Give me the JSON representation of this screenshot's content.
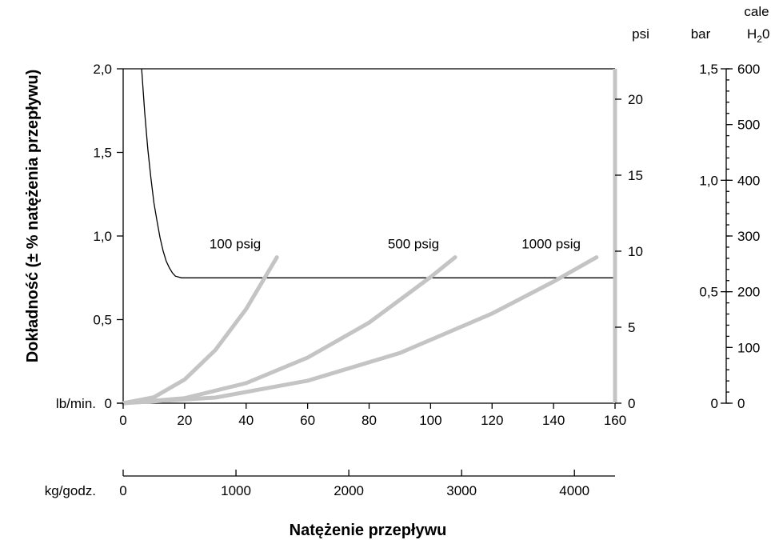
{
  "chart_data": {
    "type": "line",
    "title": "",
    "ylabel": "Dokładność (± % natężenia przepływu)",
    "xlabel": "Natężenie przepływu",
    "x_units": "lb/min.",
    "x2_units": "kg/godz.",
    "ylim": [
      0,
      2.0
    ],
    "xlim": [
      0,
      160
    ],
    "x2lim": [
      0,
      4360
    ],
    "y_ticks": [
      "0",
      "0,5",
      "1,0",
      "1,5",
      "2,0"
    ],
    "x_ticks": [
      "0",
      "20",
      "40",
      "60",
      "80",
      "100",
      "120",
      "140",
      "160"
    ],
    "x2_ticks": [
      "0",
      "1000",
      "2000",
      "3000",
      "4000"
    ],
    "psi_axis": {
      "label": "psi",
      "ticks": [
        "0",
        "5",
        "10",
        "15",
        "20"
      ],
      "lim": [
        0,
        22
      ]
    },
    "bar_axis": {
      "label": "bar",
      "ticks": [
        "0",
        "0,5",
        "1,0",
        "1,5"
      ],
      "lim": [
        0,
        1.5
      ]
    },
    "h2o_axis": {
      "label_line1": "cale",
      "label_line2": "H",
      "label_sub": "2",
      "label_tail": "0",
      "ticks": [
        "0",
        "100",
        "200",
        "300",
        "400",
        "500",
        "600"
      ],
      "lim": [
        0,
        600
      ]
    },
    "accuracy_series": {
      "x": [
        6,
        7,
        8,
        9,
        10,
        11,
        12,
        13,
        14,
        15,
        16,
        17,
        18,
        19,
        20,
        40,
        60,
        80,
        100,
        120,
        140,
        160
      ],
      "y": [
        2.0,
        1.74,
        1.52,
        1.35,
        1.2,
        1.09,
        0.99,
        0.91,
        0.85,
        0.81,
        0.78,
        0.76,
        0.755,
        0.75,
        0.75,
        0.75,
        0.75,
        0.75,
        0.75,
        0.75,
        0.75,
        0.75
      ]
    },
    "pressure_drop_series": [
      {
        "name": "100 psig",
        "x": [
          0,
          10,
          20,
          30,
          40,
          45,
          50
        ],
        "psi": [
          0,
          0.39,
          1.56,
          3.5,
          6.2,
          7.9,
          9.6
        ]
      },
      {
        "name": "500 psig",
        "x": [
          0,
          20,
          40,
          60,
          80,
          100,
          108
        ],
        "psi": [
          0,
          0.33,
          1.32,
          3.0,
          5.3,
          8.3,
          9.6
        ]
      },
      {
        "name": "1000 psig",
        "x": [
          0,
          30,
          60,
          90,
          120,
          140,
          154
        ],
        "psi": [
          0,
          0.37,
          1.48,
          3.3,
          5.9,
          8.0,
          9.6
        ]
      }
    ]
  }
}
